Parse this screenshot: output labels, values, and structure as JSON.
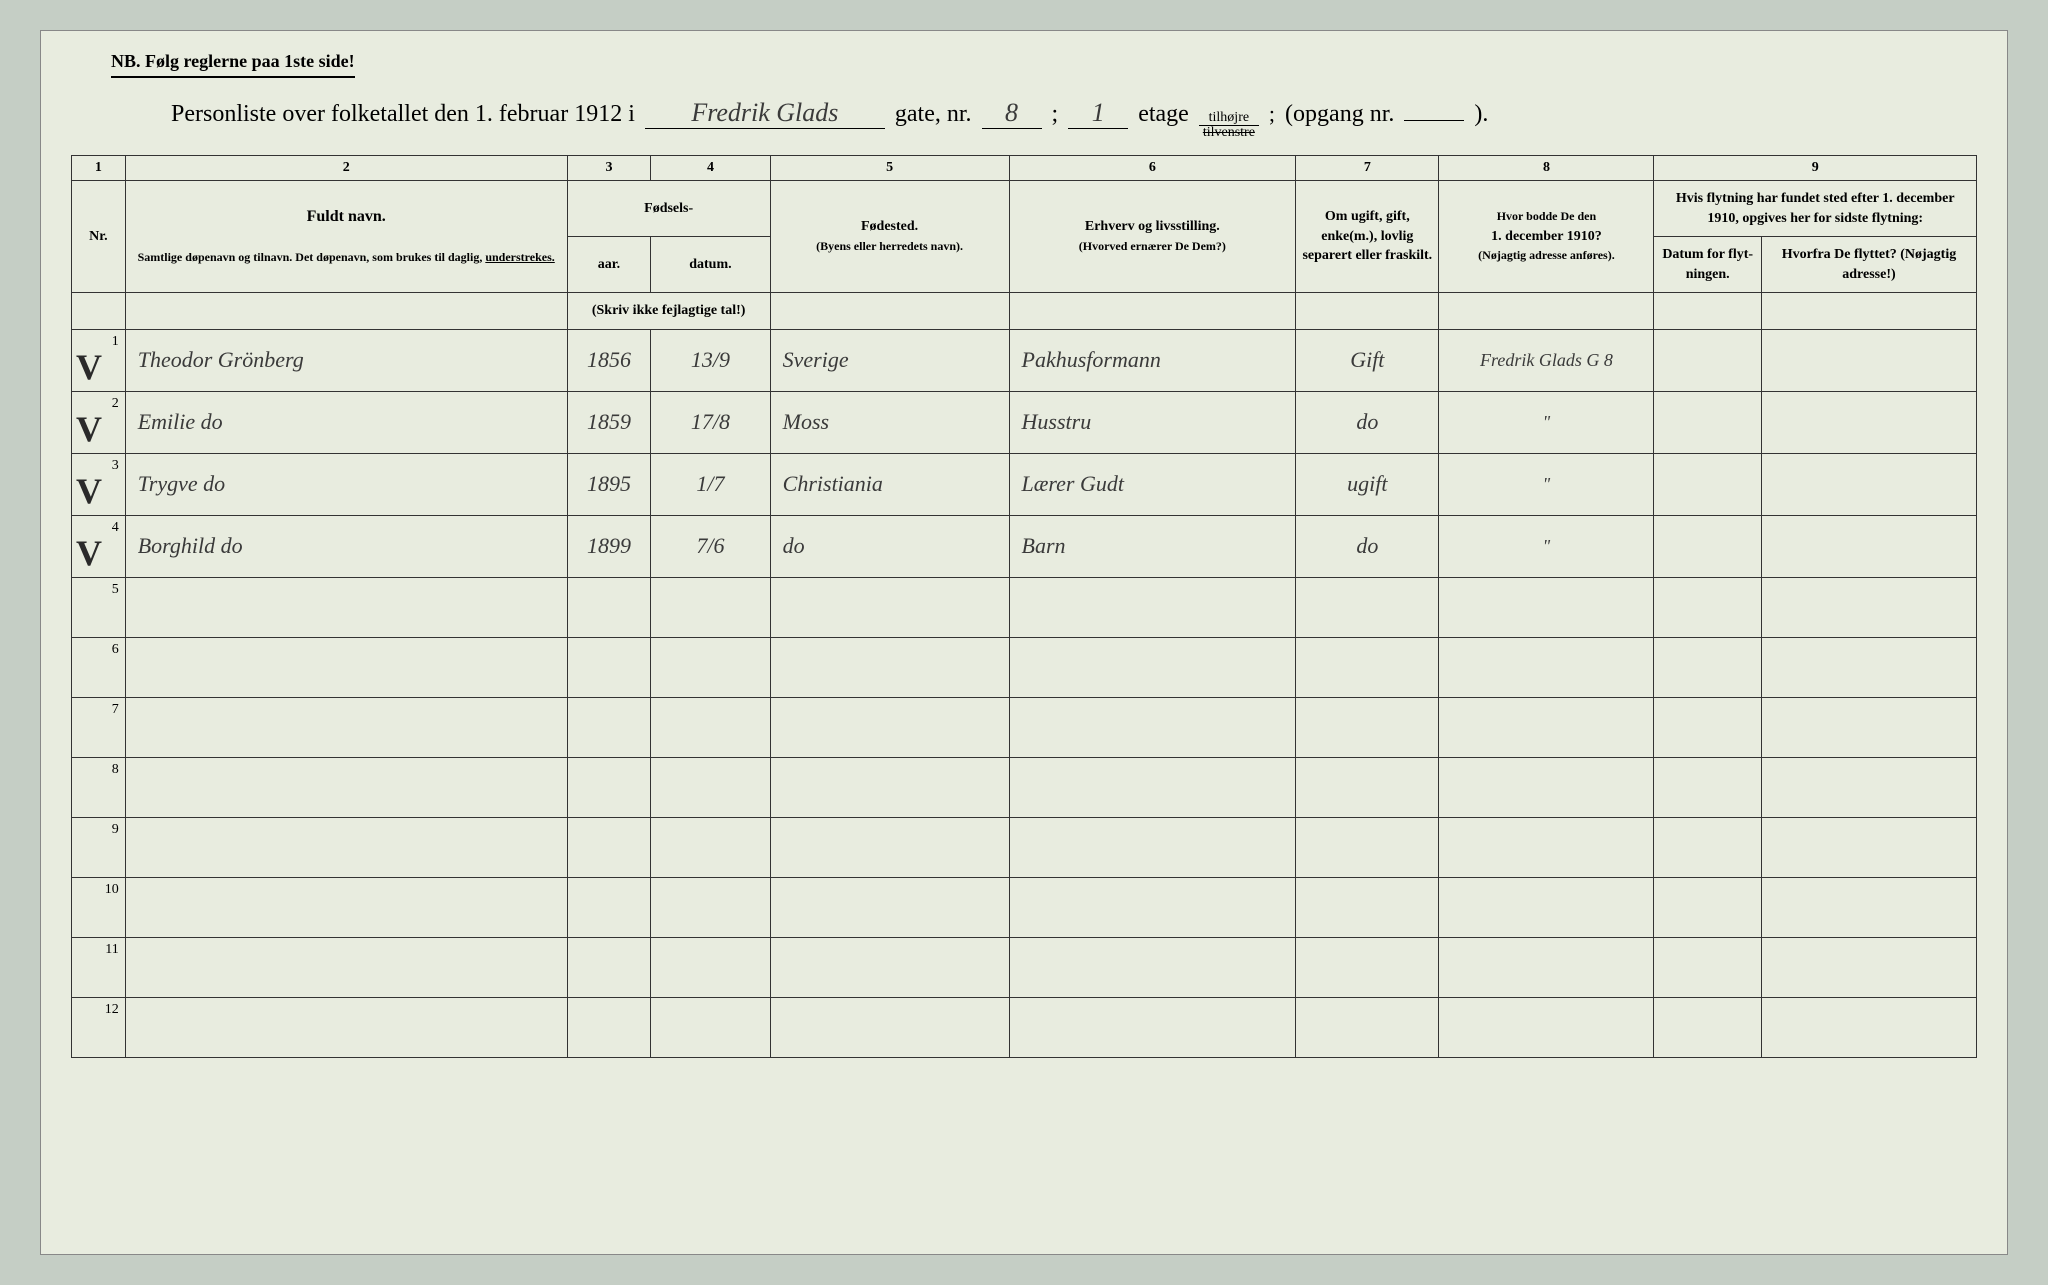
{
  "nb_text": "NB.  Følg reglerne paa 1ste side!",
  "title": {
    "prefix": "Personliste over folketallet den 1. februar 1912 i",
    "street": "Fredrik Glads",
    "gate_nr_label": "gate, nr.",
    "gate_nr": "8",
    "semicolon": ";",
    "floor": "1",
    "etage": "etage",
    "tilhojre": "tilhøjre",
    "tilvenstre": "tilvenstre",
    "opgang": "(opgang  nr.",
    "opgang_nr": "",
    "close": ")."
  },
  "col_nums": [
    "1",
    "2",
    "3",
    "4",
    "5",
    "6",
    "7",
    "8",
    "9"
  ],
  "headers": {
    "nr": "Nr.",
    "navn_bold": "Fuldt navn.",
    "navn_sub1": "Samtlige",
    "navn_sub2": "døpenavn og tilnavn.  Det døpenavn, som brukes til",
    "navn_sub3": "daglig,",
    "navn_sub4": "understrekes.",
    "fodsels": "Fødsels-",
    "aar": "aar.",
    "datum": "datum.",
    "skriv_ikke": "(Skriv ikke fejlagtige tal!)",
    "fodested_bold": "Fødested.",
    "fodested_sub": "(Byens eller herredets navn).",
    "erhverv_bold": "Erhverv og livsstilling.",
    "erhverv_sub": "(Hvorved ernærer De Dem?)",
    "om_ugift": "Om ugift, gift, enke(m.), lovlig separert eller fraskilt.",
    "hvor_bodde": "Hvor bodde De den",
    "dec_1910": "1. december 1910?",
    "hvor_sub": "(Nøjagtig adresse anføres).",
    "hvis_flyt": "Hvis flytning har fundet sted efter 1. december 1910, opgives her for",
    "sidste": "sidste",
    "flytning": "flytning:",
    "datum_flyt": "Datum for flyt-ningen.",
    "hvorfra": "Hvorfra",
    "hvorfra_sub": "De flyttet? (Nøjagtig adresse!)"
  },
  "rows": [
    {
      "n": "1",
      "check": "V",
      "name": "Theodor Grönberg",
      "aar": "1856",
      "datum": "13/9",
      "sted": "Sverige",
      "erhverv": "Pakhusformann",
      "status": "Gift",
      "bodde": "Fredrik Glads G 8",
      "flyt_dat": "",
      "flyt_fra": ""
    },
    {
      "n": "2",
      "check": "V",
      "name": "Emilie     do",
      "aar": "1859",
      "datum": "17/8",
      "sted": "Moss",
      "erhverv": "Husstru",
      "status": "do",
      "bodde": "\"",
      "flyt_dat": "",
      "flyt_fra": ""
    },
    {
      "n": "3",
      "check": "V",
      "name": "Trygve     do",
      "aar": "1895",
      "datum": "1/7",
      "sted": "Christiania",
      "erhverv": "Lærer Gudt",
      "status": "ugift",
      "bodde": "\"",
      "flyt_dat": "",
      "flyt_fra": ""
    },
    {
      "n": "4",
      "check": "V",
      "name": "Borghild   do",
      "aar": "1899",
      "datum": "7/6",
      "sted": "do",
      "erhverv": "Barn",
      "status": "do",
      "bodde": "\"",
      "flyt_dat": "",
      "flyt_fra": ""
    }
  ],
  "empty_rows": [
    "5",
    "6",
    "7",
    "8",
    "9",
    "10",
    "11",
    "12"
  ],
  "colors": {
    "bg": "#c5cec5",
    "paper": "#e8ecdf",
    "ink": "#333333",
    "hand": "#3a3a3a"
  }
}
